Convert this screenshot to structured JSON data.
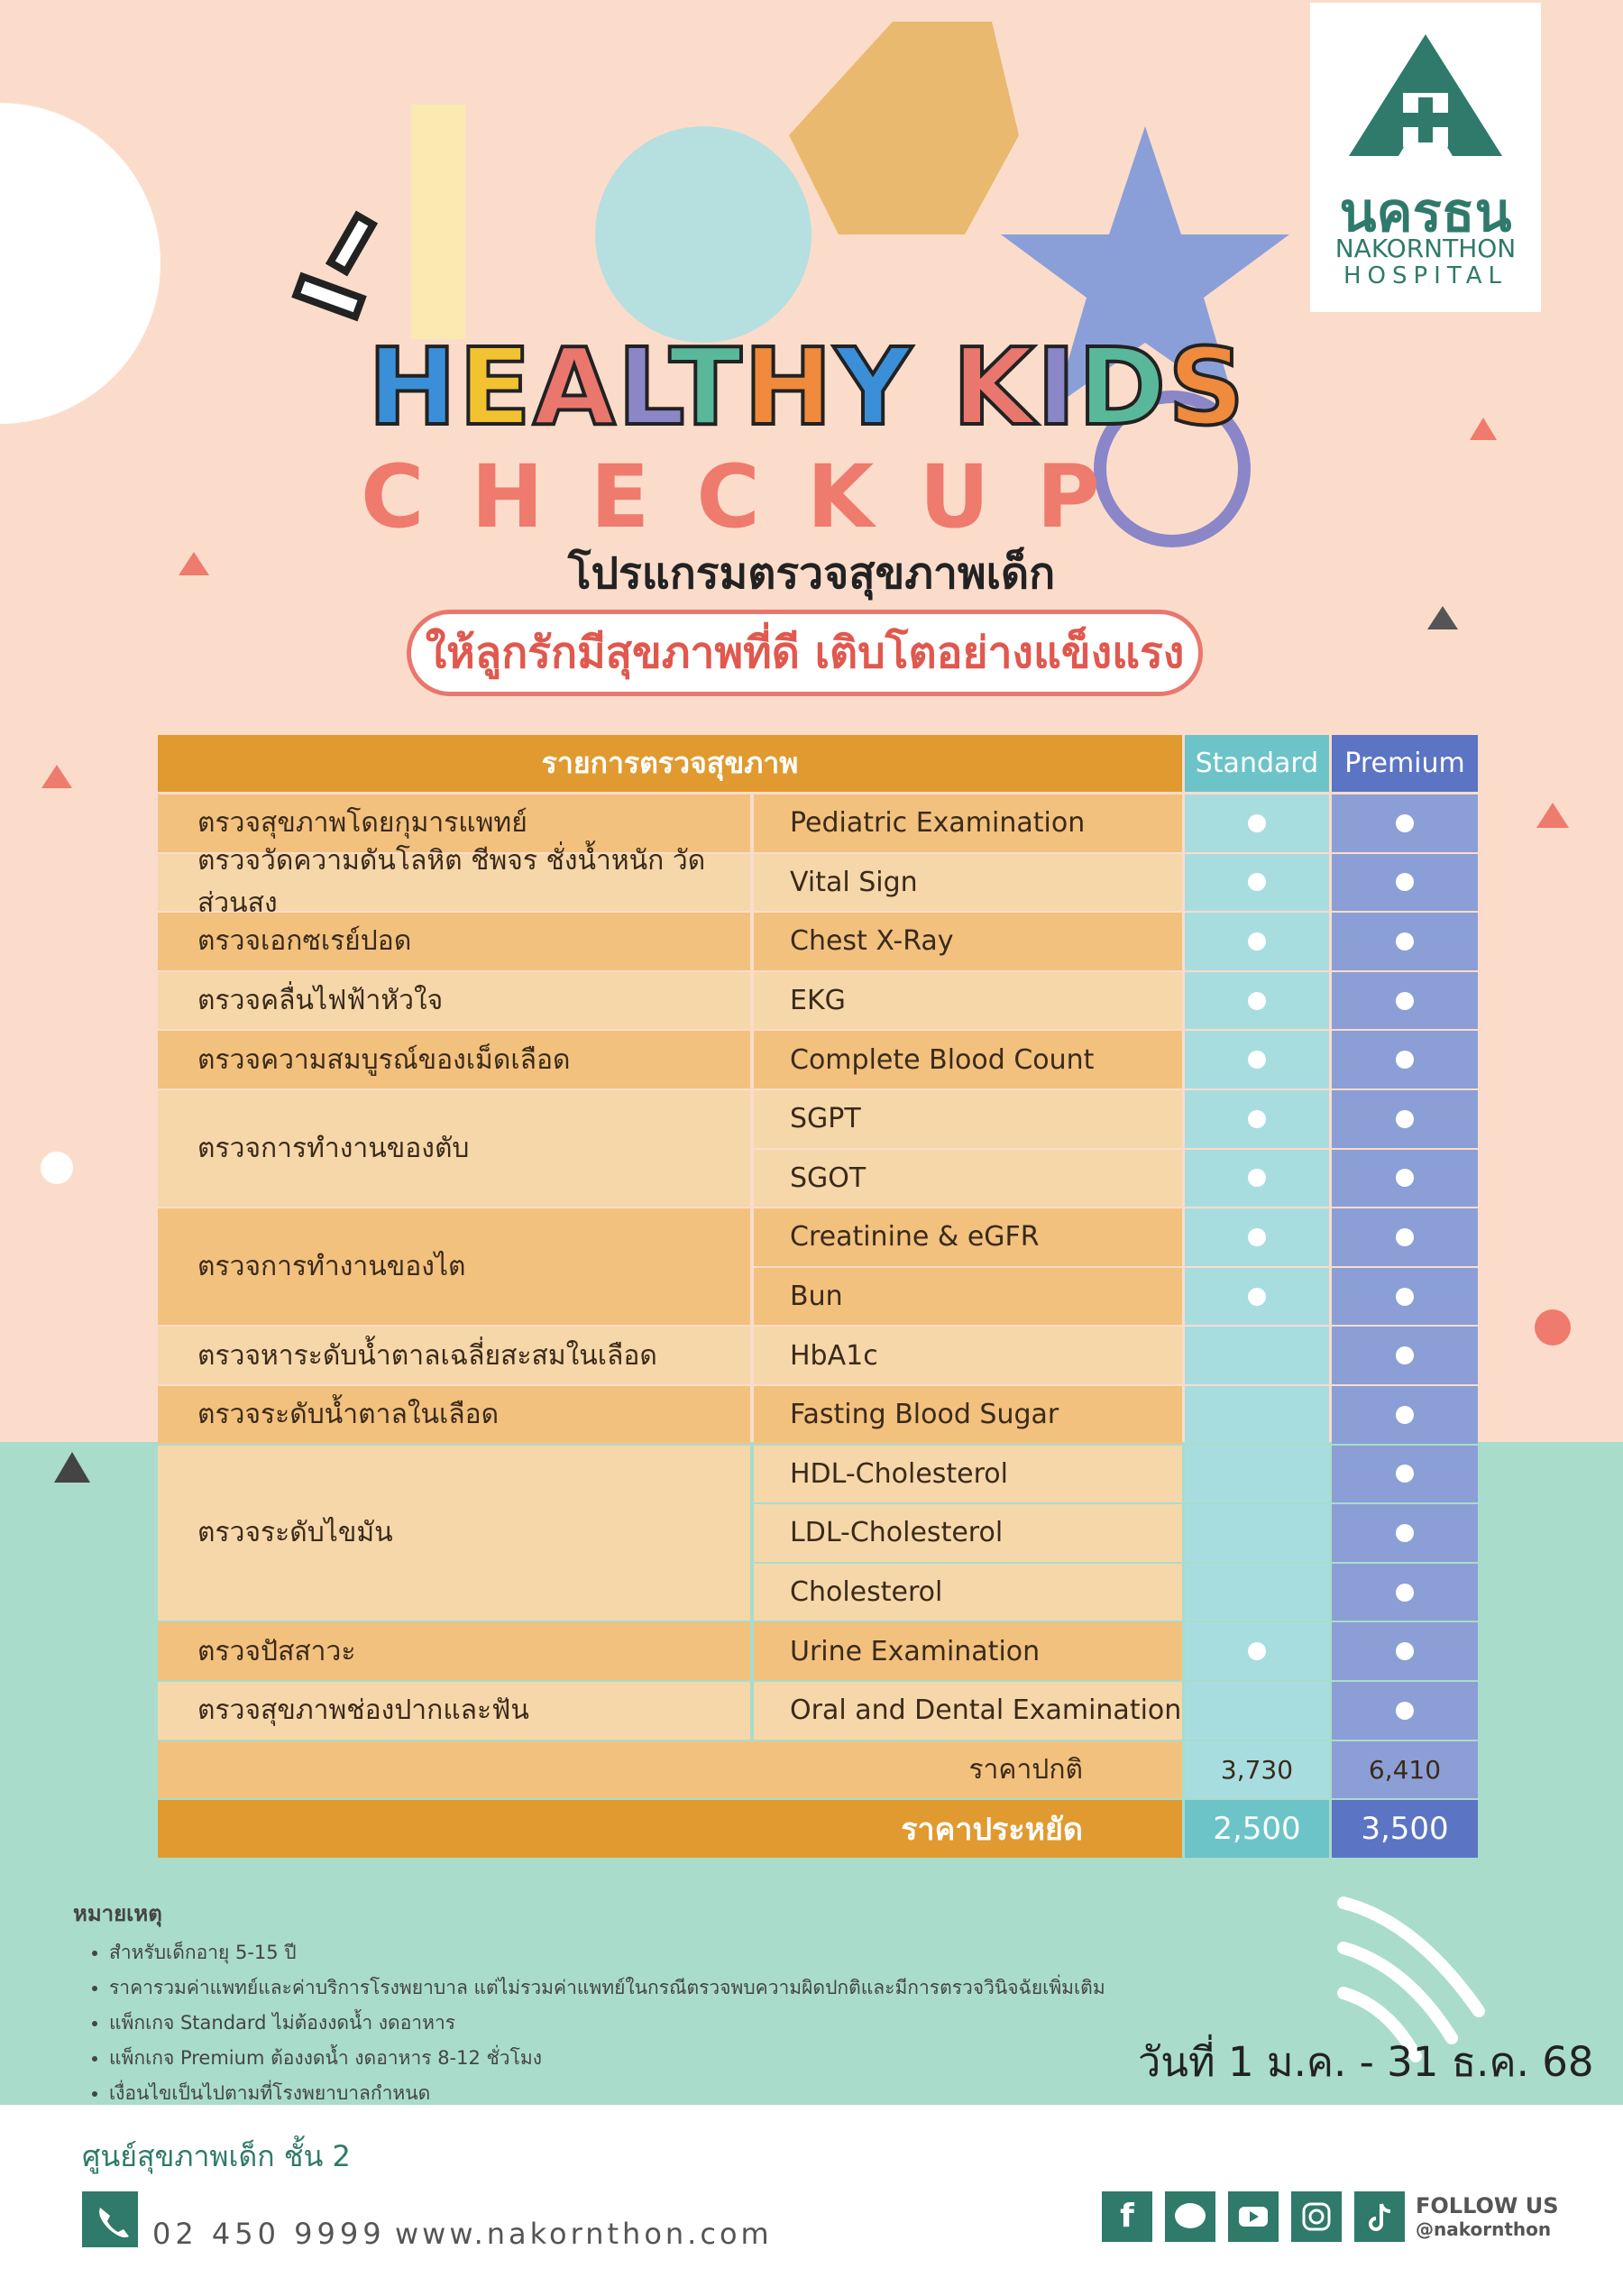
{
  "logo": {
    "thai": "นครธน",
    "name": "NAKORNTHON",
    "sub": "HOSPITAL"
  },
  "title": {
    "line1": "HEALTHY KIDS",
    "line2": "CHECKUP",
    "thai": "โปรแกรมตรวจสุขภาพเด็ก",
    "tagline": "ให้ลูกรักมีสุขภาพที่ดี เติบโตอย่างแข็งแรง"
  },
  "table": {
    "header": [
      "รายการตรวจสุขภาพ",
      "Standard",
      "Premium"
    ],
    "groups": [
      {
        "th": "ตรวจสุขภาพโดยกุมารแพทย์",
        "items": [
          {
            "en": "Pediatric Examination",
            "standard": true,
            "premium": true
          }
        ]
      },
      {
        "th": "ตรวจวัดความดันโลหิต ชีพจร ชั่งน้ำหนัก วัดส่วนสูง",
        "items": [
          {
            "en": "Vital Sign",
            "standard": true,
            "premium": true
          }
        ]
      },
      {
        "th": "ตรวจเอกซเรย์ปอด",
        "items": [
          {
            "en": "Chest X-Ray",
            "standard": true,
            "premium": true
          }
        ]
      },
      {
        "th": "ตรวจคลื่นไฟฟ้าหัวใจ",
        "items": [
          {
            "en": "EKG",
            "standard": true,
            "premium": true
          }
        ]
      },
      {
        "th": "ตรวจความสมบูรณ์ของเม็ดเลือด",
        "items": [
          {
            "en": "Complete Blood Count",
            "standard": true,
            "premium": true
          }
        ]
      },
      {
        "th": "ตรวจการทำงานของตับ",
        "items": [
          {
            "en": "SGPT",
            "standard": true,
            "premium": true
          },
          {
            "en": "SGOT",
            "standard": true,
            "premium": true
          }
        ]
      },
      {
        "th": "ตรวจการทำงานของไต",
        "items": [
          {
            "en": "Creatinine & eGFR",
            "standard": true,
            "premium": true
          },
          {
            "en": "Bun",
            "standard": true,
            "premium": true
          }
        ]
      },
      {
        "th": "ตรวจหาระดับน้ำตาลเฉลี่ยสะสมในเลือด",
        "items": [
          {
            "en": "HbA1c",
            "standard": false,
            "premium": true
          }
        ]
      },
      {
        "th": "ตรวจระดับน้ำตาลในเลือด",
        "items": [
          {
            "en": "Fasting Blood Sugar",
            "standard": false,
            "premium": true
          }
        ]
      },
      {
        "th": "ตรวจระดับไขมัน",
        "items": [
          {
            "en": "HDL-Cholesterol",
            "standard": false,
            "premium": true
          },
          {
            "en": "LDL-Cholesterol",
            "standard": false,
            "premium": true
          },
          {
            "en": "Cholesterol",
            "standard": false,
            "premium": true
          }
        ]
      },
      {
        "th": "ตรวจปัสสาวะ",
        "items": [
          {
            "en": "Urine Examination",
            "standard": true,
            "premium": true
          }
        ]
      },
      {
        "th": "ตรวจสุขภาพช่องปากและฟัน",
        "items": [
          {
            "en": "Oral and Dental Examination",
            "standard": false,
            "premium": true
          }
        ]
      }
    ],
    "prices": [
      {
        "label": "ราคาปกติ",
        "standard": "3,730",
        "premium": "6,410"
      },
      {
        "label": "ราคาประหยัด",
        "standard": "2,500",
        "premium": "3,500"
      }
    ]
  },
  "notes": {
    "title": "หมายเหตุ",
    "items": [
      "สำหรับเด็กอายุ 5-15 ปี",
      "ราคารวมค่าแพทย์และค่าบริการโรงพยาบาล แต่ไม่รวมค่าแพทย์ในกรณีตรวจพบความผิดปกติและมีการตรวจวินิจฉัยเพิ่มเติม",
      "แพ็กเกจ Standard ไม่ต้องงดน้ำ งดอาหาร",
      "แพ็กเกจ Premium ต้องงดน้ำ งดอาหาร 8-12 ชั่วโมง",
      "เงื่อนไขเป็นไปตามที่โรงพยาบาลกำหนด"
    ]
  },
  "date": "วันที่ 1 ม.ค. - 31 ธ.ค. 68",
  "footer": {
    "center": "ศูนย์สุขภาพเด็ก ชั้น 2",
    "phone": "02 450 9999",
    "web": "www.nakornthon.com",
    "follow": "FOLLOW US",
    "handle": "@nakornthon"
  }
}
